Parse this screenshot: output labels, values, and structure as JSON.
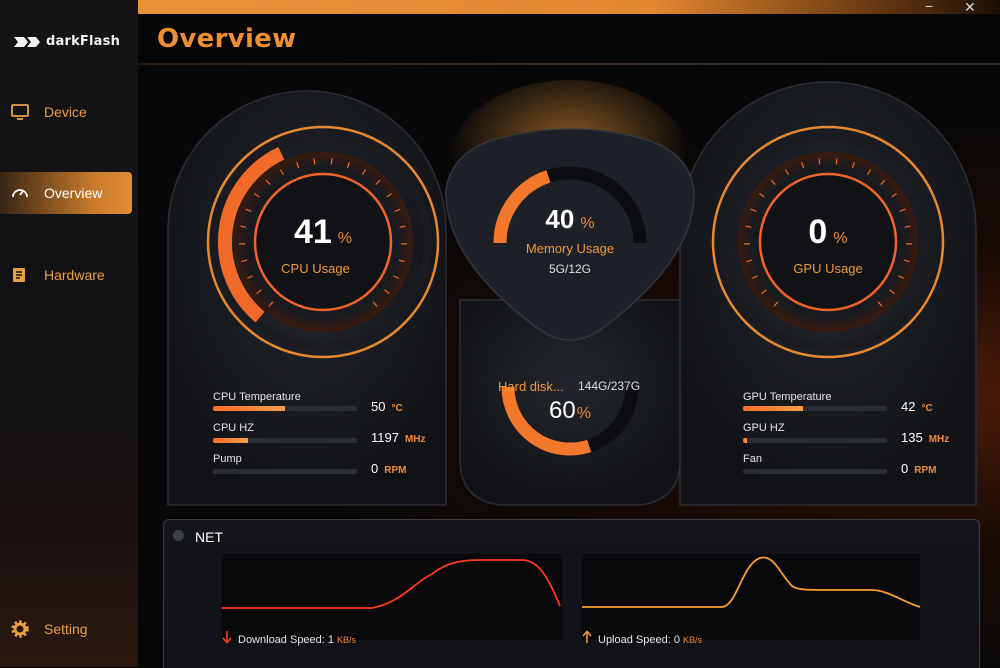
{
  "app": {
    "logo_text": "darkFlash",
    "title": "Overview"
  },
  "window_controls": {
    "minimize": "−",
    "close": "✕"
  },
  "sidebar": {
    "items": [
      {
        "label": "Device",
        "icon": "monitor-icon"
      },
      {
        "label": "Overview",
        "icon": "speedometer-icon",
        "active": true
      },
      {
        "label": "Hardware",
        "icon": "document-icon"
      },
      {
        "label": "Setting",
        "icon": "gear-icon"
      }
    ]
  },
  "cpu": {
    "usage_value": "41",
    "usage_unit": "%",
    "usage_label": "CPU Usage",
    "usage_fraction": 0.41,
    "stats": [
      {
        "label": "CPU Temperature",
        "value": "50",
        "unit": "°C",
        "fill": 0.5
      },
      {
        "label": "CPU HZ",
        "value": "1197",
        "unit": "MHz",
        "fill": 0.24
      },
      {
        "label": "Pump",
        "value": "0",
        "unit": "RPM",
        "fill": 0
      }
    ]
  },
  "memory": {
    "value": "40",
    "unit": "%",
    "label": "Memory Usage",
    "detail": "5G/12G",
    "fraction": 0.4
  },
  "disk": {
    "label": "Hard disk...",
    "detail": "144G/237G",
    "value": "60",
    "unit": "%",
    "fraction": 0.6
  },
  "gpu": {
    "usage_value": "0",
    "usage_unit": "%",
    "usage_label": "GPU Usage",
    "usage_fraction": 0,
    "stats": [
      {
        "label": "GPU Temperature",
        "value": "42",
        "unit": "°C",
        "fill": 0.42
      },
      {
        "label": "GPU HZ",
        "value": "135",
        "unit": "MHz",
        "fill": 0.03
      },
      {
        "label": "Fan",
        "value": "0",
        "unit": "RPM",
        "fill": 0
      }
    ]
  },
  "net": {
    "title": "NET",
    "download": {
      "label": "Download Speed:",
      "value": "1",
      "unit": "KB/s"
    },
    "upload": {
      "label": "Upload Speed:",
      "value": "0",
      "unit": "KB/s"
    }
  },
  "colors": {
    "accent": "#ee8f33",
    "fill_start": "#ff6a28",
    "fill_end": "#f7a04a",
    "download_line": "#ff3a1a",
    "upload_line": "#f7a030"
  }
}
